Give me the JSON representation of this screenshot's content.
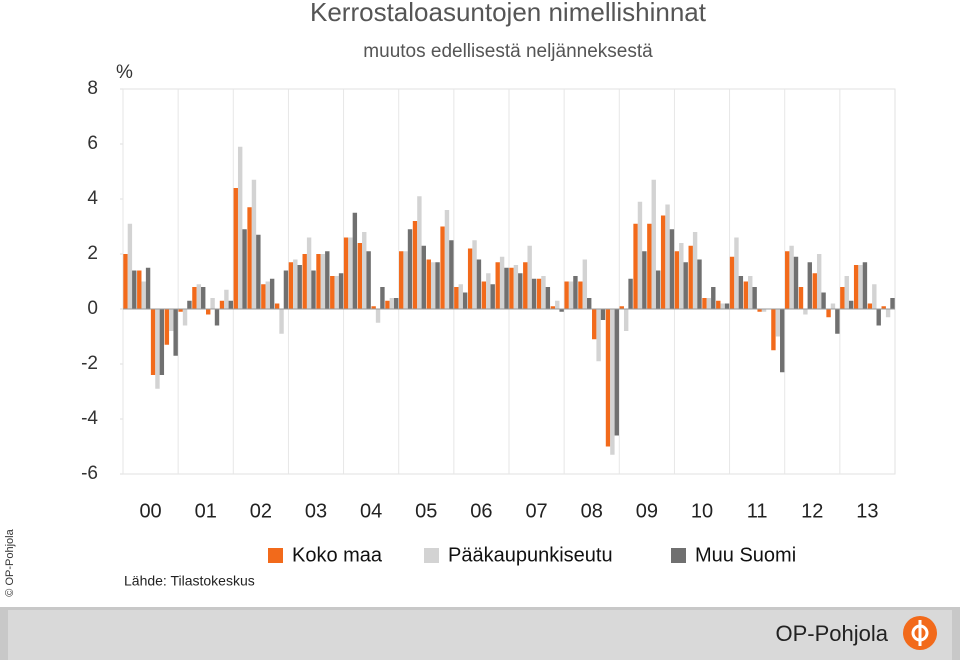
{
  "chart_data": {
    "type": "bar",
    "title": "Kerrostaloasuntojen nimellishinnat",
    "subtitle": "muutos edellisestä neljänneksestä",
    "y_unit": "%",
    "source": "Lähde: Tilastokeskus",
    "copyright": "© OP-Pohjola",
    "logo": "OP-Pohjola",
    "categories": [
      "00",
      null,
      null,
      null,
      "01",
      null,
      null,
      null,
      "02",
      null,
      null,
      null,
      "03",
      null,
      null,
      null,
      "04",
      null,
      null,
      null,
      "05",
      null,
      null,
      null,
      "06",
      null,
      null,
      null,
      "07",
      null,
      null,
      null,
      "08",
      null,
      null,
      null,
      "09",
      null,
      null,
      null,
      "10",
      null,
      null,
      null,
      "11",
      null,
      null,
      null,
      "12",
      null,
      null,
      null,
      "13",
      null,
      null,
      null
    ],
    "series": [
      {
        "name": "Koko maa",
        "color": "#f26a1b",
        "values": [
          2.0,
          1.4,
          -2.4,
          -1.3,
          -0.1,
          0.8,
          -0.2,
          0.3,
          4.4,
          3.7,
          0.9,
          0.2,
          1.7,
          2.0,
          2.0,
          1.2,
          2.6,
          2.4,
          0.1,
          0.3,
          2.1,
          3.2,
          1.8,
          3.0,
          0.8,
          2.2,
          1.0,
          1.7,
          1.5,
          1.7,
          1.1,
          0.1,
          1.0,
          1.0,
          -1.1,
          -5.0,
          0.1,
          3.1,
          3.1,
          3.4,
          2.1,
          2.3,
          0.4,
          0.3,
          1.9,
          1.0,
          -0.1,
          -1.5,
          2.1,
          0.8,
          1.3,
          -0.3,
          0.8,
          1.6,
          0.2,
          0.1
        ]
      },
      {
        "name": "Pääkaupunkiseutu",
        "color": "#d3d3d3",
        "values": [
          3.1,
          1.0,
          -2.9,
          -0.8,
          -0.6,
          0.9,
          0.4,
          0.7,
          5.9,
          4.7,
          1.0,
          -0.9,
          1.8,
          2.6,
          2.0,
          1.2,
          2.6,
          2.8,
          -0.5,
          0.4,
          2.1,
          4.1,
          1.7,
          3.6,
          0.9,
          2.5,
          1.3,
          1.9,
          1.6,
          2.3,
          1.2,
          0.3,
          1.0,
          1.8,
          -1.9,
          -5.3,
          -0.8,
          3.9,
          4.7,
          3.8,
          2.4,
          2.8,
          0.4,
          0.2,
          2.6,
          1.2,
          -0.1,
          -1.0,
          2.3,
          -0.2,
          2.0,
          0.2,
          1.2,
          1.6,
          0.9,
          -0.3
        ]
      },
      {
        "name": "Muu Suomi",
        "color": "#707070",
        "values": [
          1.4,
          1.5,
          -2.4,
          -1.7,
          0.3,
          0.8,
          -0.6,
          0.3,
          2.9,
          2.7,
          1.1,
          1.4,
          1.6,
          1.4,
          2.1,
          1.3,
          3.5,
          2.1,
          0.8,
          0.4,
          2.9,
          2.3,
          1.7,
          2.5,
          0.6,
          1.8,
          0.9,
          1.5,
          1.3,
          1.1,
          0.8,
          -0.1,
          1.2,
          0.4,
          -0.4,
          -4.6,
          1.1,
          2.1,
          1.4,
          2.9,
          1.7,
          1.8,
          0.8,
          0.2,
          1.2,
          0.8,
          0.0,
          -2.3,
          1.9,
          1.7,
          0.6,
          -0.9,
          0.3,
          1.7,
          -0.6,
          0.4
        ]
      }
    ],
    "ylim": [
      -6,
      8
    ],
    "yticks": [
      -6,
      -4,
      -2,
      0,
      2,
      4,
      6,
      8
    ]
  }
}
